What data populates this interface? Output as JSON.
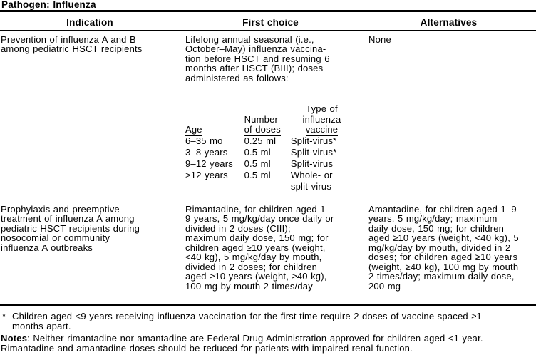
{
  "doc": {
    "title": "Pathogen: Influenza",
    "columns": [
      "Indication",
      "First choice",
      "Alternatives"
    ],
    "rows": [
      {
        "indication_lines": [
          "Prevention of influenza A and B",
          "among pediatric HSCT recipients"
        ],
        "first_choice": {
          "intro_lines": [
            "Lifelong annual seasonal (i.e.,",
            "October–May) influenza vaccina-",
            "tion before HSCT and resuming 6",
            "months after HSCT (BIII); doses",
            "administered as follows:"
          ],
          "dose_table": {
            "headers": {
              "age": "Age",
              "number_line1": "Number",
              "number_line2": "of doses",
              "type_line1": "Type of",
              "type_line2": "influenza",
              "type_line3": "vaccine"
            },
            "entries": [
              {
                "age": "6–35 mo",
                "dose": "0.25 ml",
                "vaccine": "Split-virus*"
              },
              {
                "age": "3–8 years",
                "dose": "0.5 ml",
                "vaccine": "Split-virus*"
              },
              {
                "age": "9–12 years",
                "dose": "0.5 ml",
                "vaccine": "Split-virus"
              },
              {
                "age": ">12 years",
                "dose": "0.5 ml",
                "vaccine": "Whole- or\nsplit-virus"
              }
            ]
          }
        },
        "alternatives_lines": [
          "None"
        ]
      },
      {
        "indication_lines": [
          "Prophylaxis and preemptive",
          "treatment of influenza A among",
          "pediatric HSCT recipients during",
          "nosocomial or community",
          "influenza A outbreaks"
        ],
        "first_choice_lines": [
          "Rimantadine, for children aged 1–",
          "9 years, 5 mg/kg/day once daily or",
          "divided in 2 doses (CIII);",
          "maximum daily dose, 150 mg; for",
          "children aged ≥10 years (weight,",
          "<40 kg), 5 mg/kg/day by mouth,",
          "divided in 2 doses; for children",
          "aged ≥10 years (weight, ≥40 kg),",
          "100 mg by mouth 2 times/day"
        ],
        "alternatives_lines": [
          "Amantadine, for children aged 1–9",
          "years, 5 mg/kg/day; maximum",
          "daily dose, 150 mg; for children",
          "aged ≥10 years (weight, <40 kg), 5",
          "mg/kg/day by mouth, divided in 2",
          "doses; for children aged ≥10 years",
          "(weight, ≥40 kg), 100 mg by mouth",
          "2 times/day; maximum daily dose,",
          "200 mg"
        ]
      }
    ],
    "footnotes": {
      "asterisk": {
        "marker": "*",
        "lines": [
          "Children aged <9 years receiving influenza vaccination for the first time require 2 doses of vaccine spaced ≥1",
          "months apart."
        ]
      },
      "notes": {
        "label": "Notes",
        "line1_rest": ": Neither rimantadine nor amantadine are Federal Drug Administration-approved for children aged <1 year.",
        "line2": "Rimantadine and amantadine doses should be reduced for patients with impaired renal function."
      }
    }
  }
}
